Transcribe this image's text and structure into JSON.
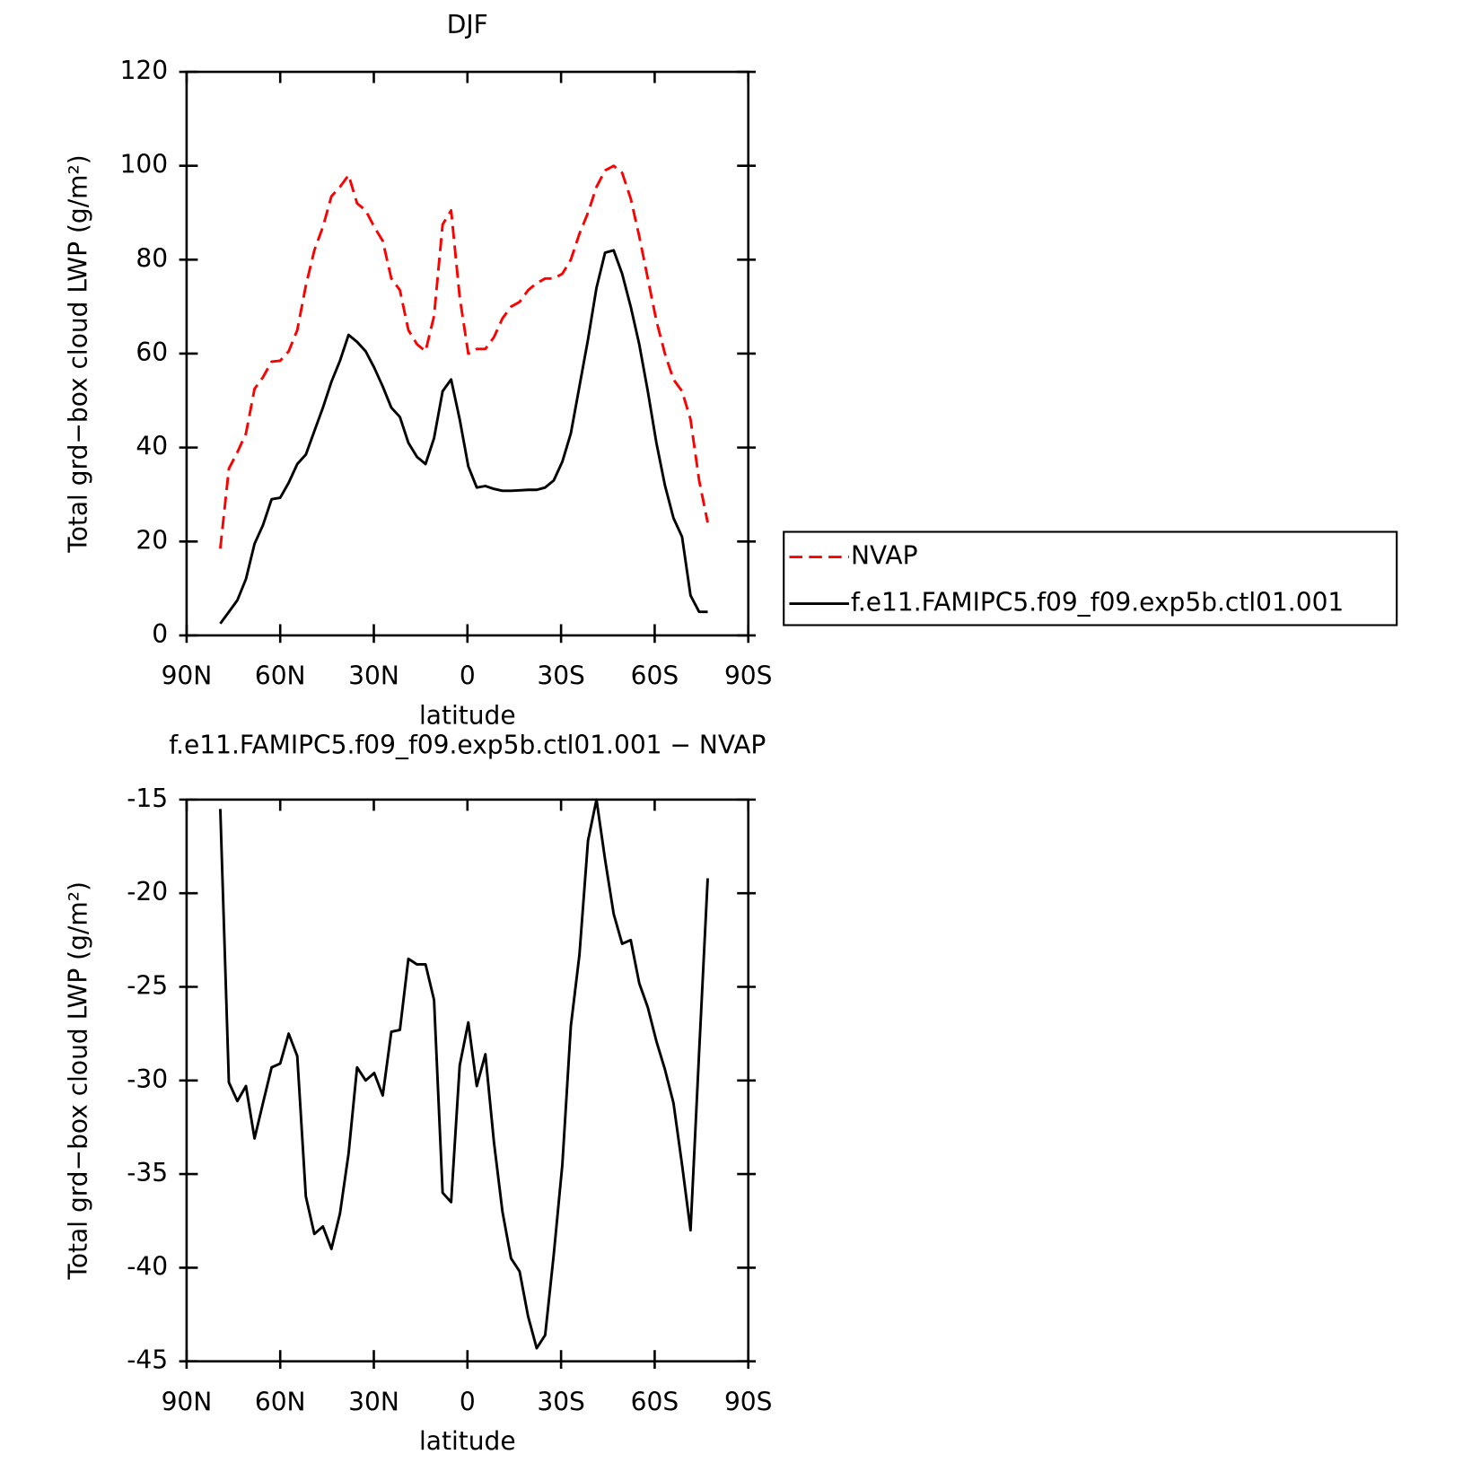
{
  "chart_data": [
    {
      "type": "line",
      "title": "DJF",
      "xlabel": "latitude",
      "ylabel": "Total grd−box cloud LWP (g/m²)",
      "x": [
        79.2,
        76.46,
        73.72,
        70.98,
        68.24,
        65.5,
        62.76,
        60.02,
        57.28,
        54.54,
        51.8,
        49.06,
        46.32,
        43.58,
        40.84,
        38.1,
        35.36,
        32.62,
        29.88,
        27.14,
        24.4,
        21.66,
        18.92,
        16.18,
        13.44,
        10.7,
        7.96,
        5.22,
        2.48,
        -0.26,
        -3,
        -5.74,
        -8.48,
        -11.22,
        -13.96,
        -16.7,
        -19.44,
        -22.18,
        -24.92,
        -27.66,
        -30.4,
        -33.14,
        -35.88,
        -38.62,
        -41.36,
        -44.1,
        -46.84,
        -49.58,
        -52.32,
        -55.06,
        -57.8,
        -60.54,
        -63.28,
        -66.02,
        -68.76,
        -71.5,
        -74.24,
        -76.98
      ],
      "series": [
        {
          "name": "NVAP",
          "color": "#ff0000",
          "linestyle": "dashed",
          "values": [
            18.5,
            35.5,
            39,
            43,
            52.5,
            55,
            58.3,
            58.5,
            60.5,
            65,
            74.5,
            82,
            87,
            93.5,
            95.5,
            98,
            92,
            90.5,
            87,
            84,
            76,
            73.5,
            65,
            62,
            60.5,
            68,
            87.5,
            90.5,
            72,
            60,
            61,
            61,
            63.5,
            67.5,
            70,
            71,
            73.5,
            75,
            76,
            76,
            77,
            80,
            85.5,
            90,
            95.5,
            99,
            100,
            98.5,
            93,
            85,
            76,
            67,
            60,
            54.5,
            52,
            46,
            33,
            24
          ]
        },
        {
          "name": "f.e11.FAMIPC5.f09_f09.exp5b.ctl01.001",
          "color": "#000000",
          "linestyle": "solid",
          "values": [
            2.5,
            5,
            7.5,
            12,
            19.5,
            23.5,
            29,
            29.3,
            32.5,
            36.5,
            38.5,
            43.5,
            48.5,
            54,
            58.5,
            64,
            62.5,
            60.5,
            57,
            53,
            48.5,
            46.5,
            41,
            38,
            36.5,
            42,
            52,
            54.5,
            46,
            36,
            31.5,
            31.8,
            31.2,
            30.8,
            30.8,
            30.9,
            31,
            31,
            31.5,
            33,
            37,
            43,
            53,
            63,
            74,
            81.5,
            82,
            77,
            70,
            62,
            52,
            41,
            32,
            25,
            21,
            8.5,
            5,
            5
          ]
        }
      ],
      "xlim": [
        90,
        -90
      ],
      "xticks": [
        {
          "value": 90,
          "label": "90N"
        },
        {
          "value": 60,
          "label": "60N"
        },
        {
          "value": 30,
          "label": "30N"
        },
        0,
        {
          "value": -30,
          "label": "30S"
        },
        {
          "value": -60,
          "label": "60S"
        },
        {
          "value": -90,
          "label": "90S"
        }
      ],
      "ylim": [
        0,
        120
      ],
      "yticks": [
        0,
        20,
        40,
        60,
        80,
        100,
        120
      ],
      "grid": false,
      "legend": "right"
    },
    {
      "type": "line",
      "title": "f.e11.FAMIPC5.f09_f09.exp5b.ctl01.001 − NVAP",
      "xlabel": "latitude",
      "ylabel": "Total grd−box cloud LWP (g/m²)",
      "x": [
        79.2,
        76.46,
        73.72,
        70.98,
        68.24,
        65.5,
        62.76,
        60.02,
        57.28,
        54.54,
        51.8,
        49.06,
        46.32,
        43.58,
        40.84,
        38.1,
        35.36,
        32.62,
        29.88,
        27.14,
        24.4,
        21.66,
        18.92,
        16.18,
        13.44,
        10.7,
        7.96,
        5.22,
        2.48,
        -0.26,
        -3,
        -5.74,
        -8.48,
        -11.22,
        -13.96,
        -16.7,
        -19.44,
        -22.18,
        -24.92,
        -27.66,
        -30.4,
        -33.14,
        -35.88,
        -38.62,
        -41.36,
        -44.1,
        -46.84,
        -49.58,
        -52.32,
        -55.06,
        -57.8,
        -60.54,
        -63.28,
        -66.02,
        -68.76,
        -71.5,
        -74.24,
        -76.98
      ],
      "series": [
        {
          "color": "#000000",
          "linestyle": "solid",
          "values": [
            -15.5,
            -30.1,
            -31.1,
            -30.3,
            -33.1,
            -31.2,
            -29.3,
            -29.1,
            -27.5,
            -28.7,
            -36.2,
            -38.2,
            -37.8,
            -39,
            -37.1,
            -33.9,
            -29.3,
            -30,
            -29.6,
            -30.8,
            -27.4,
            -27.3,
            -23.5,
            -23.8,
            -23.8,
            -25.7,
            -36,
            -36.5,
            -29.2,
            -26.9,
            -30.3,
            -28.6,
            -33.3,
            -37,
            -39.5,
            -40.2,
            -42.6,
            -44.3,
            -43.6,
            -39.3,
            -34.5,
            -27.1,
            -23.3,
            -17.2,
            -15,
            -18.2,
            -21.1,
            -22.7,
            -22.5,
            -24.8,
            -26.1,
            -27.9,
            -29.4,
            -31.2,
            -34.5,
            -38,
            -28.5,
            -19.2
          ]
        }
      ],
      "xlim": [
        90,
        -90
      ],
      "xticks": [
        {
          "value": 90,
          "label": "90N"
        },
        {
          "value": 60,
          "label": "60N"
        },
        {
          "value": 30,
          "label": "30N"
        },
        0,
        {
          "value": -30,
          "label": "30S"
        },
        {
          "value": -60,
          "label": "60S"
        },
        {
          "value": -90,
          "label": "90S"
        }
      ],
      "ylim": [
        -45,
        -15
      ],
      "yticks": [
        -45,
        -40,
        -35,
        -30,
        -25,
        -20,
        -15
      ],
      "grid": false
    }
  ]
}
